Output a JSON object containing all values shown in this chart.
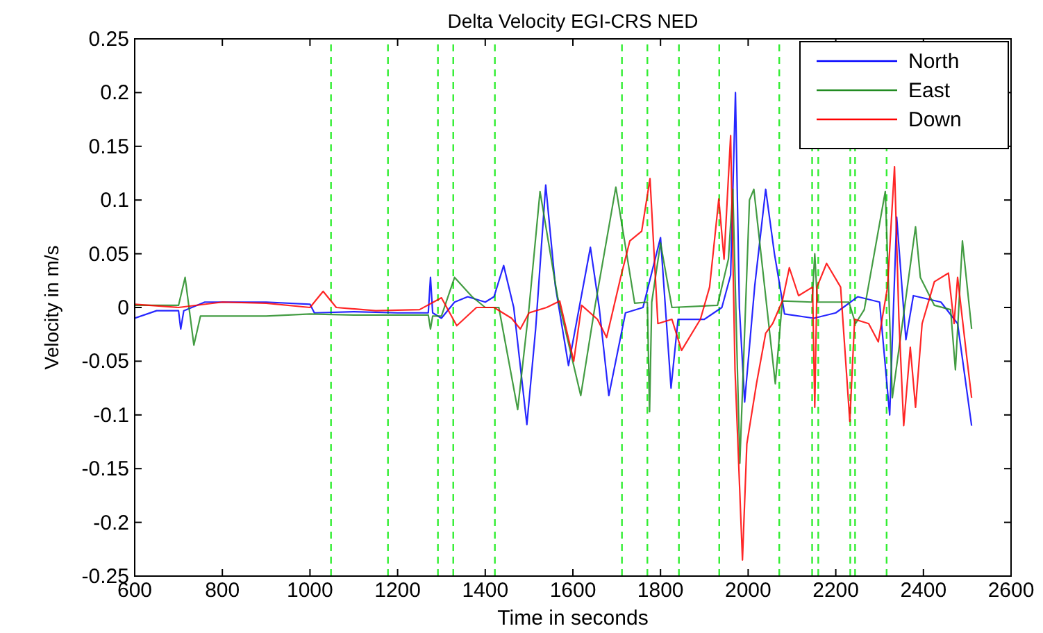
{
  "chart_data": {
    "type": "line",
    "title": "Delta Velocity EGI-CRS NED",
    "xlabel": "Time in seconds",
    "ylabel": "Velocity in m/s",
    "xlim": [
      600,
      2600
    ],
    "xticks": [
      600,
      800,
      1000,
      1200,
      1400,
      1600,
      1800,
      2000,
      2200,
      2400,
      2600
    ],
    "ylim": [
      -0.25,
      0.25
    ],
    "yticks": [
      -0.25,
      -0.2,
      -0.15,
      -0.1,
      -0.05,
      0,
      0.05,
      0.1,
      0.15,
      0.2,
      0.25
    ],
    "grid": false,
    "legend": "top right",
    "line_style": "solid",
    "series": [
      {
        "name": "North",
        "color": "#0000ff",
        "x": [
          600,
          650,
          700,
          705,
          712,
          760,
          800,
          900,
          1000,
          1010,
          1100,
          1200,
          1270,
          1275,
          1280,
          1300,
          1330,
          1360,
          1400,
          1420,
          1442,
          1465,
          1495,
          1515,
          1538,
          1560,
          1590,
          1640,
          1660,
          1682,
          1720,
          1760,
          1800,
          1824,
          1840,
          1900,
          1940,
          1960,
          1971,
          1980,
          1992,
          2015,
          2040,
          2060,
          2083,
          2150,
          2200,
          2250,
          2300,
          2323,
          2339,
          2360,
          2377,
          2440,
          2478,
          2510
        ],
        "values": [
          -0.01,
          -0.003,
          -0.003,
          -0.02,
          -0.003,
          0.005,
          0.005,
          0.005,
          0.003,
          -0.005,
          -0.004,
          -0.005,
          -0.005,
          0.028,
          -0.005,
          -0.01,
          0.005,
          0.01,
          0.005,
          0.01,
          0.039,
          0.0,
          -0.109,
          -0.02,
          0.114,
          0.02,
          -0.054,
          0.056,
          0.0,
          -0.082,
          -0.005,
          0.0,
          0.065,
          -0.075,
          -0.011,
          -0.011,
          0.0,
          0.03,
          0.2,
          0.0,
          -0.088,
          0.02,
          0.11,
          0.05,
          -0.006,
          -0.01,
          -0.005,
          0.01,
          0.005,
          -0.1,
          0.084,
          -0.03,
          0.011,
          0.005,
          -0.015,
          -0.11
        ]
      },
      {
        "name": "East",
        "color": "#228b22",
        "x": [
          600,
          650,
          700,
          715,
          735,
          750,
          800,
          900,
          1000,
          1100,
          1200,
          1270,
          1275,
          1280,
          1300,
          1330,
          1370,
          1400,
          1431,
          1474,
          1500,
          1525,
          1565,
          1618,
          1650,
          1698,
          1741,
          1770,
          1775,
          1780,
          1800,
          1826,
          1930,
          1955,
          1965,
          1981,
          2003,
          2013,
          2062,
          2078,
          2146,
          2152,
          2158,
          2230,
          2245,
          2265,
          2313,
          2329,
          2382,
          2393,
          2425,
          2462,
          2473,
          2489,
          2510
        ],
        "values": [
          0.002,
          0.002,
          0.002,
          0.028,
          -0.035,
          -0.008,
          -0.008,
          -0.008,
          -0.006,
          -0.007,
          -0.007,
          -0.007,
          -0.02,
          -0.008,
          -0.008,
          0.028,
          0.01,
          0.0,
          0.0,
          -0.095,
          0.0,
          0.108,
          0.01,
          -0.082,
          0.0,
          0.112,
          0.004,
          0.005,
          -0.097,
          0.005,
          0.06,
          0.0,
          0.002,
          0.045,
          0.11,
          -0.145,
          0.1,
          0.11,
          -0.071,
          0.006,
          0.005,
          0.05,
          0.005,
          0.005,
          -0.015,
          -0.002,
          0.108,
          -0.084,
          0.075,
          0.028,
          0.002,
          -0.002,
          -0.058,
          0.062,
          -0.02
        ]
      },
      {
        "name": "Down",
        "color": "#ff0000",
        "x": [
          600,
          700,
          800,
          900,
          1000,
          1030,
          1060,
          1150,
          1250,
          1300,
          1335,
          1380,
          1420,
          1460,
          1480,
          1500,
          1540,
          1570,
          1602,
          1620,
          1656,
          1677,
          1709,
          1730,
          1757,
          1776,
          1794,
          1826,
          1848,
          1891,
          1912,
          1933,
          1945,
          1960,
          1970,
          1987,
          1997,
          2019,
          2040,
          2056,
          2078,
          2094,
          2115,
          2147,
          2152,
          2157,
          2179,
          2211,
          2232,
          2243,
          2275,
          2297,
          2318,
          2334,
          2344,
          2355,
          2370,
          2382,
          2397,
          2425,
          2457,
          2470,
          2478,
          2500,
          2510
        ],
        "values": [
          0.003,
          0.0,
          0.005,
          0.004,
          0.0,
          0.015,
          0.0,
          -0.003,
          -0.002,
          0.009,
          -0.017,
          0.0,
          0.0,
          -0.01,
          -0.02,
          -0.005,
          0.0,
          0.006,
          -0.05,
          0.002,
          -0.011,
          -0.028,
          0.028,
          0.062,
          0.071,
          0.12,
          -0.015,
          -0.011,
          -0.04,
          -0.011,
          0.019,
          0.101,
          0.045,
          0.16,
          -0.058,
          -0.235,
          -0.127,
          -0.071,
          -0.024,
          -0.015,
          0.006,
          0.037,
          0.011,
          0.019,
          -0.093,
          0.019,
          0.041,
          0.019,
          -0.106,
          -0.011,
          -0.015,
          -0.032,
          0.019,
          0.131,
          -0.01,
          -0.11,
          -0.037,
          -0.093,
          -0.015,
          0.024,
          0.032,
          -0.015,
          0.028,
          -0.05,
          -0.084
        ]
      }
    ],
    "ref_lines": [
      {
        "axis": "x",
        "value": 1048,
        "color": "#33ee33",
        "line_style": "dashed"
      },
      {
        "axis": "x",
        "value": 1178,
        "color": "#33ee33",
        "line_style": "dashed"
      },
      {
        "axis": "x",
        "value": 1292,
        "color": "#33ee33",
        "line_style": "dashed"
      },
      {
        "axis": "x",
        "value": 1327,
        "color": "#33ee33",
        "line_style": "dashed"
      },
      {
        "axis": "x",
        "value": 1422,
        "color": "#33ee33",
        "line_style": "dashed"
      },
      {
        "axis": "x",
        "value": 1712,
        "color": "#33ee33",
        "line_style": "dashed"
      },
      {
        "axis": "x",
        "value": 1770,
        "color": "#33ee33",
        "line_style": "dashed"
      },
      {
        "axis": "x",
        "value": 1842,
        "color": "#33ee33",
        "line_style": "dashed"
      },
      {
        "axis": "x",
        "value": 1934,
        "color": "#33ee33",
        "line_style": "dashed"
      },
      {
        "axis": "x",
        "value": 2071,
        "color": "#33ee33",
        "line_style": "dashed"
      },
      {
        "axis": "x",
        "value": 2146,
        "color": "#33ee33",
        "line_style": "dashed"
      },
      {
        "axis": "x",
        "value": 2160,
        "color": "#33ee33",
        "line_style": "dashed"
      },
      {
        "axis": "x",
        "value": 2233,
        "color": "#33ee33",
        "line_style": "dashed"
      },
      {
        "axis": "x",
        "value": 2244,
        "color": "#33ee33",
        "line_style": "dashed"
      },
      {
        "axis": "x",
        "value": 2316,
        "color": "#33ee33",
        "line_style": "dashed"
      }
    ]
  }
}
